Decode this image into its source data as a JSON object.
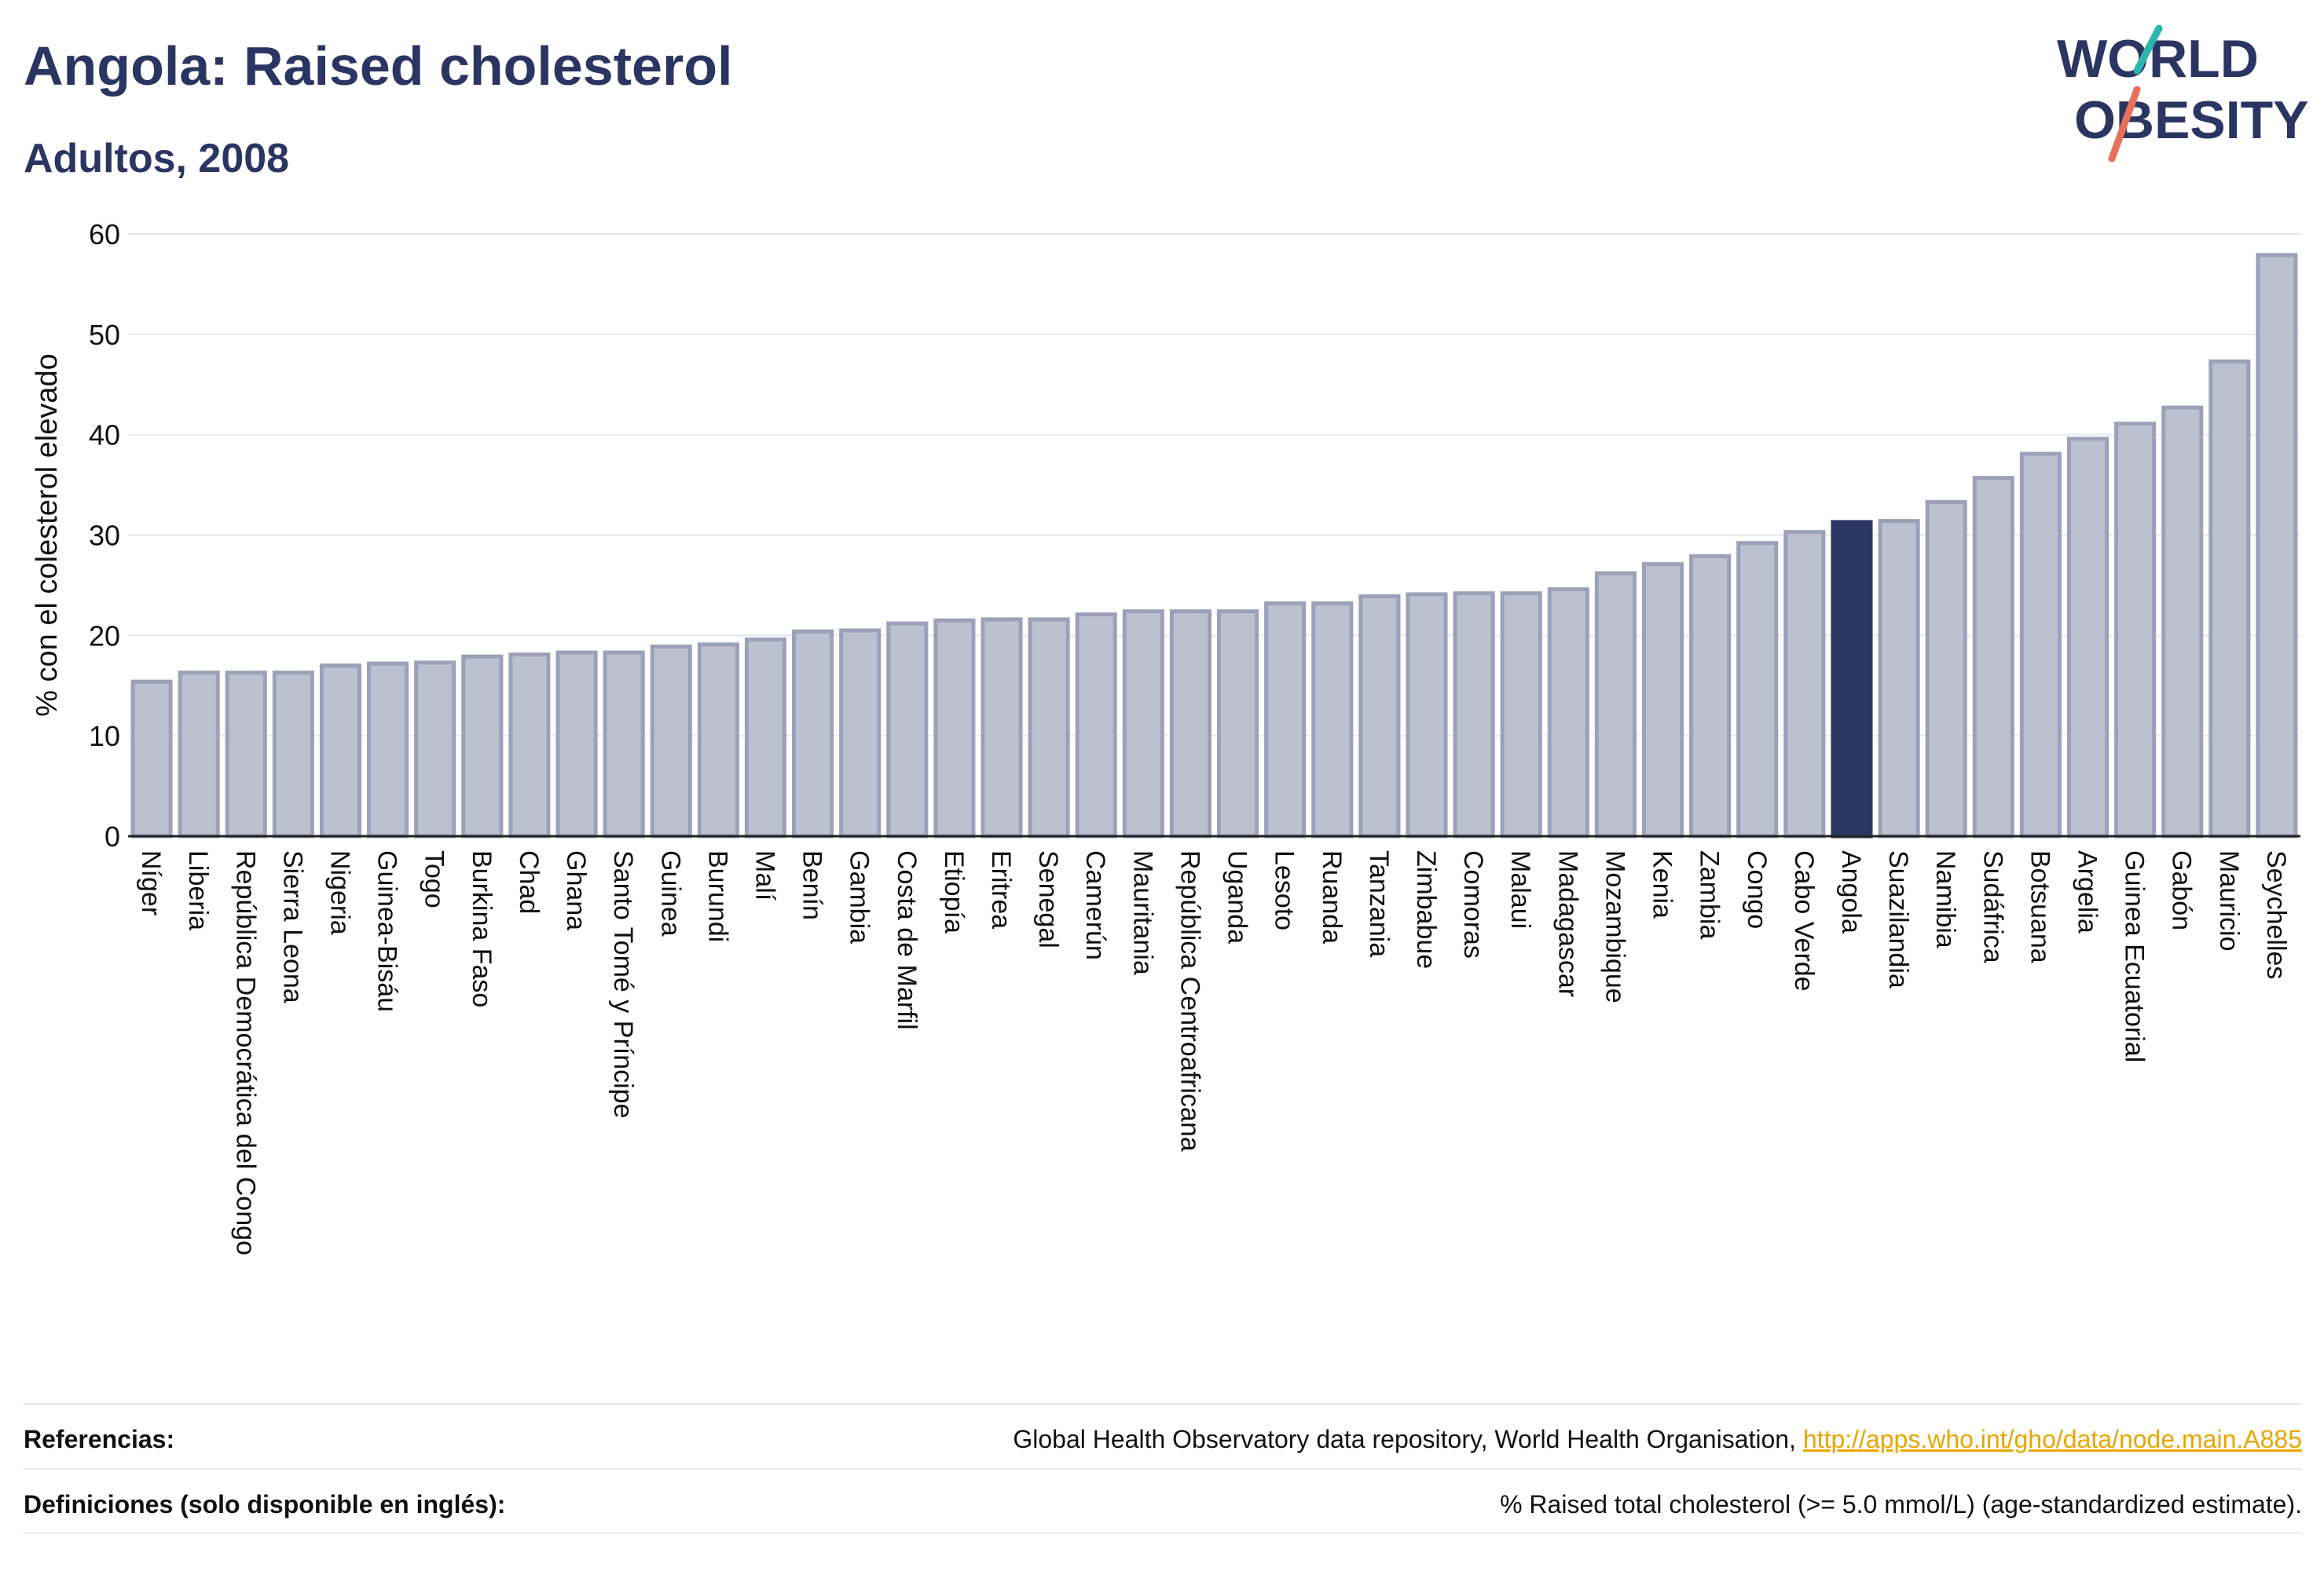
{
  "title": "Angola: Raised cholesterol",
  "subtitle": "Adultos, 2008",
  "logo": {
    "line1": "WORLD",
    "line2": "OBESITY"
  },
  "colors": {
    "title": "#2b3561",
    "bar": "#bcc1d0",
    "bar_border": "#9aa1b8",
    "highlight": "#2b3561",
    "link": "#e8a600"
  },
  "chart_data": {
    "type": "bar",
    "ylabel": "% con el colesterol elevado",
    "xlabel": "",
    "ylim": [
      0,
      60
    ],
    "yticks": [
      0,
      10,
      20,
      30,
      40,
      50,
      60
    ],
    "grid": true,
    "highlight": "Angola",
    "categories": [
      "Níger",
      "Liberia",
      "República Democrática del Congo",
      "Sierra Leona",
      "Nigeria",
      "Guinea-Bisáu",
      "Togo",
      "Burkina Faso",
      "Chad",
      "Ghana",
      "Santo Tomé y Príncipe",
      "Guinea",
      "Burundi",
      "Malí",
      "Benín",
      "Gambia",
      "Costa de Marfil",
      "Etiopía",
      "Eritrea",
      "Senegal",
      "Camerún",
      "Mauritania",
      "República Centroafricana",
      "Uganda",
      "Lesoto",
      "Ruanda",
      "Tanzania",
      "Zimbabue",
      "Comoras",
      "Malaui",
      "Madagascar",
      "Mozambique",
      "Kenia",
      "Zambia",
      "Congo",
      "Cabo Verde",
      "Angola",
      "Suazilandia",
      "Namibia",
      "Sudáfrica",
      "Botsuana",
      "Argelia",
      "Guinea Ecuatorial",
      "Gabón",
      "Mauricio",
      "Seychelles"
    ],
    "values": [
      15.4,
      16.3,
      16.3,
      16.3,
      17.0,
      17.2,
      17.3,
      17.9,
      18.1,
      18.3,
      18.3,
      18.9,
      19.1,
      19.6,
      20.4,
      20.5,
      21.2,
      21.5,
      21.6,
      21.6,
      22.1,
      22.4,
      22.4,
      22.4,
      23.2,
      23.2,
      23.9,
      24.1,
      24.2,
      24.2,
      24.6,
      26.2,
      27.1,
      27.9,
      29.2,
      30.3,
      31.3,
      31.4,
      33.3,
      35.7,
      38.1,
      39.6,
      41.1,
      42.7,
      47.3,
      57.9
    ]
  },
  "footer": {
    "references_label": "Referencias:",
    "references_text": "Global Health Observatory data repository, World Health Organisation, ",
    "references_link": "http://apps.who.int/gho/data/node.main.A885",
    "definitions_label": "Definiciones (solo disponible en inglés):",
    "definitions_text": "% Raised total cholesterol (>= 5.0 mmol/L) (age-standardized estimate)."
  }
}
